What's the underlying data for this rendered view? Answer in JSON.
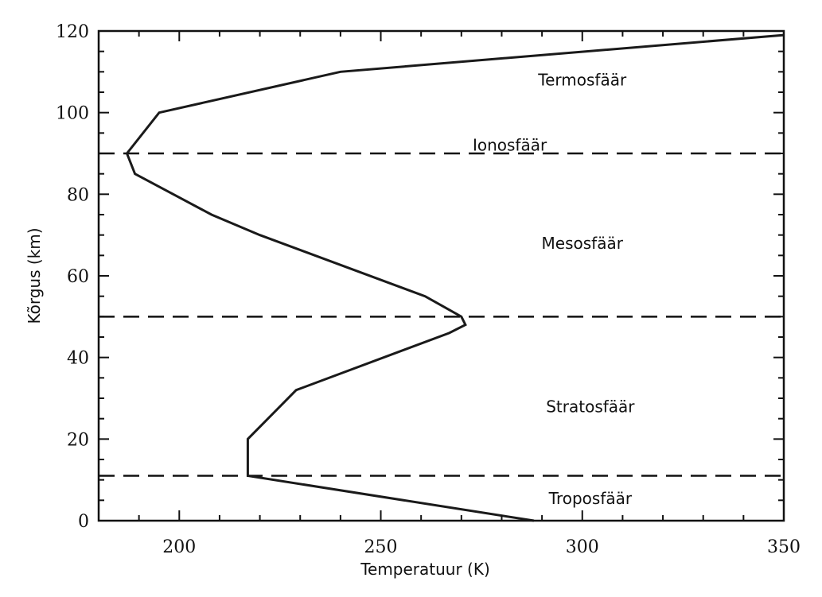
{
  "chart_data": {
    "type": "line",
    "title": "",
    "xlabel": "Temperatuur (K)",
    "ylabel": "Kõrgus (km)",
    "xlim": [
      180,
      350
    ],
    "ylim": [
      0,
      120
    ],
    "x_ticks": [
      200,
      250,
      300,
      350
    ],
    "y_ticks": [
      0,
      20,
      40,
      60,
      80,
      100,
      120
    ],
    "grid": false,
    "series": [
      {
        "color": "#1a1a1a",
        "points": [
          {
            "x": 288,
            "y": 0
          },
          {
            "x": 217,
            "y": 11
          },
          {
            "x": 217,
            "y": 20
          },
          {
            "x": 229,
            "y": 32
          },
          {
            "x": 267,
            "y": 46
          },
          {
            "x": 271,
            "y": 48
          },
          {
            "x": 270,
            "y": 50
          },
          {
            "x": 261,
            "y": 55
          },
          {
            "x": 220,
            "y": 70
          },
          {
            "x": 208,
            "y": 75
          },
          {
            "x": 189,
            "y": 85
          },
          {
            "x": 187,
            "y": 90
          },
          {
            "x": 195,
            "y": 100
          },
          {
            "x": 240,
            "y": 110
          },
          {
            "x": 350,
            "y": 119
          }
        ]
      }
    ],
    "boundaries": [
      11,
      50,
      90
    ],
    "annotations": [
      {
        "text": "Termosfäär",
        "x": 300,
        "y": 108
      },
      {
        "text": "Ionosfäär",
        "x": 282,
        "y": 92
      },
      {
        "text": "Mesosfäär",
        "x": 300,
        "y": 68
      },
      {
        "text": "Stratosfäär",
        "x": 302,
        "y": 28
      },
      {
        "text": "Troposfäär",
        "x": 302,
        "y": 5.5
      }
    ]
  }
}
